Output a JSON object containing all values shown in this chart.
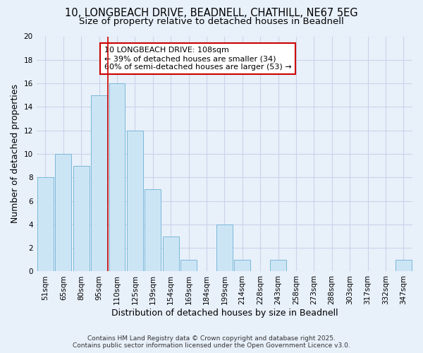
{
  "title": "10, LONGBEACH DRIVE, BEADNELL, CHATHILL, NE67 5EG",
  "subtitle": "Size of property relative to detached houses in Beadnell",
  "xlabel": "Distribution of detached houses by size in Beadnell",
  "ylabel": "Number of detached properties",
  "categories": [
    "51sqm",
    "65sqm",
    "80sqm",
    "95sqm",
    "110sqm",
    "125sqm",
    "139sqm",
    "154sqm",
    "169sqm",
    "184sqm",
    "199sqm",
    "214sqm",
    "228sqm",
    "243sqm",
    "258sqm",
    "273sqm",
    "288sqm",
    "303sqm",
    "317sqm",
    "332sqm",
    "347sqm"
  ],
  "values": [
    8,
    10,
    9,
    15,
    16,
    12,
    7,
    3,
    1,
    0,
    4,
    1,
    0,
    1,
    0,
    0,
    0,
    0,
    0,
    0,
    1
  ],
  "bar_color": "#cce5f5",
  "bar_edge_color": "#7ab8d8",
  "red_line_x": 4.0,
  "annotation_lines": [
    "10 LONGBEACH DRIVE: 108sqm",
    "← 39% of detached houses are smaller (34)",
    "60% of semi-detached houses are larger (53) →"
  ],
  "ylim": [
    0,
    20
  ],
  "yticks": [
    0,
    2,
    4,
    6,
    8,
    10,
    12,
    14,
    16,
    18,
    20
  ],
  "footer_line1": "Contains HM Land Registry data © Crown copyright and database right 2025.",
  "footer_line2": "Contains public sector information licensed under the Open Government Licence v3.0.",
  "title_fontsize": 10.5,
  "subtitle_fontsize": 9.5,
  "axis_label_fontsize": 9,
  "tick_fontsize": 7.5,
  "annotation_fontsize": 8,
  "footer_fontsize": 6.5,
  "background_color": "#e8f0fa",
  "plot_bg_color": "#e8f0fa",
  "grid_color": "#c8d4e8",
  "annotation_box_color": "#ffffff",
  "annotation_box_edge": "#cc0000",
  "red_line_color": "#cc0000"
}
